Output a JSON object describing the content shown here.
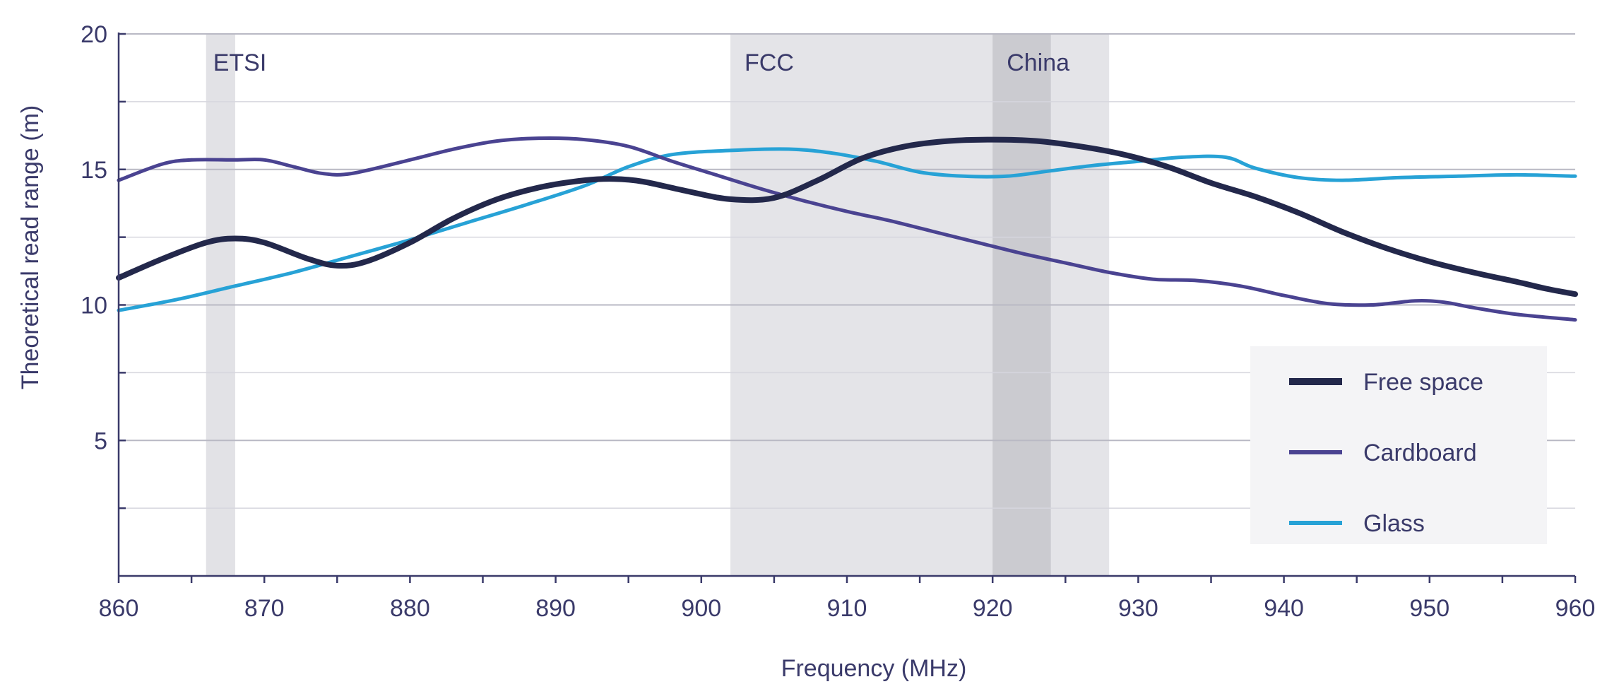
{
  "chart_data": {
    "type": "line",
    "title": "",
    "xlabel": "Frequency (MHz)",
    "ylabel": "Theoretical read range (m)",
    "xlim": [
      860,
      960
    ],
    "ylim": [
      0,
      20
    ],
    "xticks": [
      "860",
      "870",
      "880",
      "890",
      "900",
      "910",
      "920",
      "930",
      "940",
      "950",
      "960"
    ],
    "yticks": [
      "5",
      "10",
      "15",
      "20"
    ],
    "grid": "horizontal",
    "legend_position": "bottom-right",
    "bands": [
      {
        "label": "ETSI",
        "start": 866,
        "end": 868,
        "color": "#e2e2e6"
      },
      {
        "label": "FCC",
        "start": 902,
        "end": 928,
        "color": "#e4e4e8"
      },
      {
        "label": "China",
        "start": 920,
        "end": 924,
        "color": "#cbcbd0"
      }
    ],
    "series": [
      {
        "name": "Free space",
        "color": "#23284b",
        "points": [
          [
            860,
            11.0
          ],
          [
            863,
            11.7
          ],
          [
            866,
            12.3
          ],
          [
            868,
            12.45
          ],
          [
            870,
            12.3
          ],
          [
            873,
            11.7
          ],
          [
            875,
            11.45
          ],
          [
            877,
            11.6
          ],
          [
            880,
            12.3
          ],
          [
            883,
            13.2
          ],
          [
            886,
            13.9
          ],
          [
            889,
            14.35
          ],
          [
            892,
            14.6
          ],
          [
            894,
            14.65
          ],
          [
            896,
            14.55
          ],
          [
            899,
            14.2
          ],
          [
            902,
            13.9
          ],
          [
            905,
            13.95
          ],
          [
            908,
            14.6
          ],
          [
            911,
            15.4
          ],
          [
            914,
            15.85
          ],
          [
            917,
            16.05
          ],
          [
            920,
            16.1
          ],
          [
            923,
            16.05
          ],
          [
            926,
            15.85
          ],
          [
            929,
            15.55
          ],
          [
            932,
            15.1
          ],
          [
            935,
            14.5
          ],
          [
            938,
            14.0
          ],
          [
            941,
            13.4
          ],
          [
            944,
            12.7
          ],
          [
            947,
            12.1
          ],
          [
            950,
            11.6
          ],
          [
            953,
            11.2
          ],
          [
            956,
            10.85
          ],
          [
            958,
            10.6
          ],
          [
            960,
            10.4
          ]
        ]
      },
      {
        "name": "Cardboard",
        "color": "#4a4391",
        "points": [
          [
            860,
            14.6
          ],
          [
            863,
            15.2
          ],
          [
            865,
            15.35
          ],
          [
            868,
            15.35
          ],
          [
            870,
            15.35
          ],
          [
            872,
            15.1
          ],
          [
            874,
            14.85
          ],
          [
            876,
            14.85
          ],
          [
            880,
            15.35
          ],
          [
            883,
            15.75
          ],
          [
            886,
            16.05
          ],
          [
            889,
            16.15
          ],
          [
            892,
            16.1
          ],
          [
            895,
            15.85
          ],
          [
            898,
            15.3
          ],
          [
            901,
            14.8
          ],
          [
            904,
            14.3
          ],
          [
            907,
            13.85
          ],
          [
            910,
            13.45
          ],
          [
            913,
            13.1
          ],
          [
            916,
            12.7
          ],
          [
            919,
            12.3
          ],
          [
            922,
            11.9
          ],
          [
            925,
            11.55
          ],
          [
            928,
            11.2
          ],
          [
            931,
            10.95
          ],
          [
            934,
            10.9
          ],
          [
            937,
            10.7
          ],
          [
            940,
            10.35
          ],
          [
            943,
            10.05
          ],
          [
            946,
            10.0
          ],
          [
            949,
            10.15
          ],
          [
            951,
            10.1
          ],
          [
            953,
            9.9
          ],
          [
            956,
            9.65
          ],
          [
            960,
            9.45
          ]
        ]
      },
      {
        "name": "Glass",
        "color": "#27a2d6",
        "points": [
          [
            860,
            9.8
          ],
          [
            864,
            10.2
          ],
          [
            868,
            10.7
          ],
          [
            872,
            11.2
          ],
          [
            876,
            11.8
          ],
          [
            880,
            12.4
          ],
          [
            884,
            13.05
          ],
          [
            888,
            13.7
          ],
          [
            892,
            14.4
          ],
          [
            895,
            15.1
          ],
          [
            898,
            15.55
          ],
          [
            902,
            15.7
          ],
          [
            906,
            15.75
          ],
          [
            909,
            15.6
          ],
          [
            912,
            15.3
          ],
          [
            915,
            14.9
          ],
          [
            918,
            14.75
          ],
          [
            921,
            14.75
          ],
          [
            924,
            14.95
          ],
          [
            927,
            15.15
          ],
          [
            930,
            15.3
          ],
          [
            933,
            15.45
          ],
          [
            936,
            15.45
          ],
          [
            938,
            15.05
          ],
          [
            941,
            14.7
          ],
          [
            944,
            14.6
          ],
          [
            948,
            14.7
          ],
          [
            952,
            14.75
          ],
          [
            956,
            14.8
          ],
          [
            960,
            14.75
          ]
        ]
      }
    ]
  }
}
